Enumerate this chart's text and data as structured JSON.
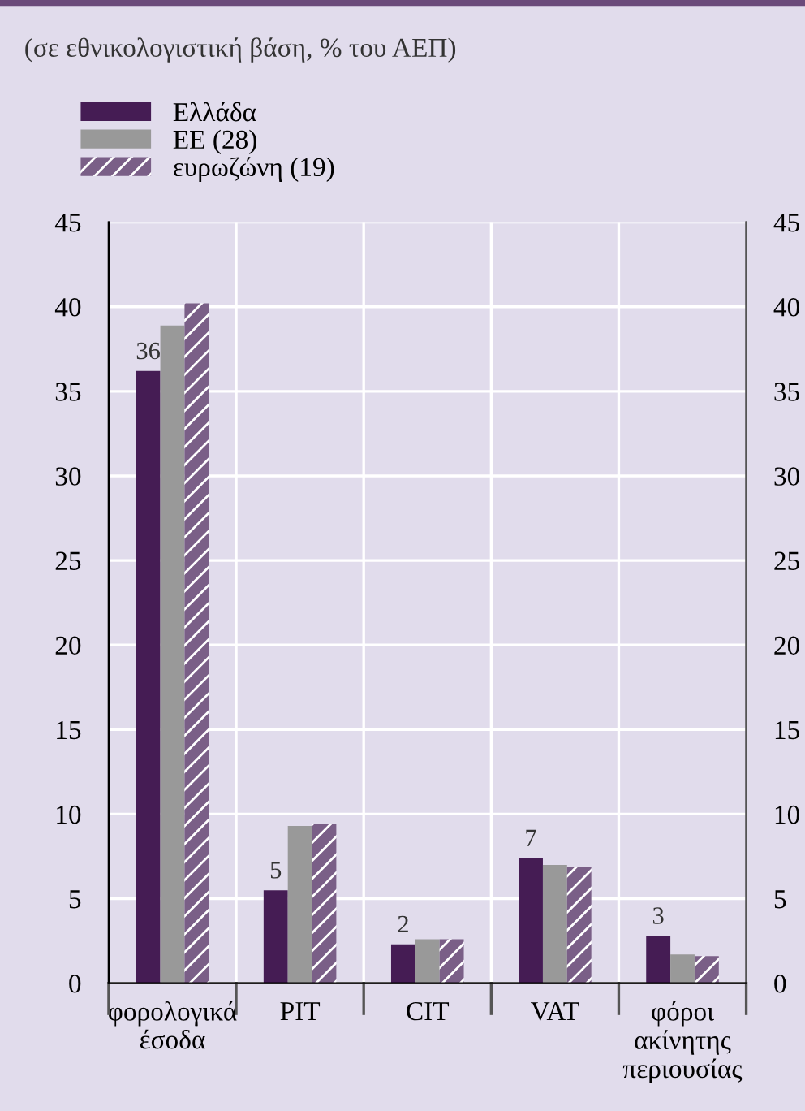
{
  "chart_data": {
    "type": "bar",
    "title": "(σε εθνικολογιστική βάση, % του ΑΕΠ)",
    "categories": [
      "φορολογικά\nέσοδα",
      "PIT",
      "CIT",
      "VAT",
      "φόροι\nακίνητης\nπεριουσίας"
    ],
    "series": [
      {
        "name": "Ελλάδα",
        "color": "#451c54",
        "values": [
          36.2,
          5.5,
          2.3,
          7.4,
          2.8
        ],
        "value_labels": [
          "36",
          "5",
          "2",
          "7",
          "3"
        ]
      },
      {
        "name": "ΕΕ (28)",
        "color": "#999999",
        "values": [
          38.9,
          9.3,
          2.6,
          7.0,
          1.7
        ]
      },
      {
        "name": "ευρωζώνη (19)",
        "color": "#7a5f87",
        "values": [
          40.2,
          9.4,
          2.6,
          6.9,
          1.6
        ]
      }
    ],
    "ylim": [
      0,
      45
    ],
    "yticks": [
      0,
      5,
      10,
      15,
      20,
      25,
      30,
      35,
      40,
      45
    ],
    "y2lim": [
      0,
      45
    ],
    "y2ticks": [
      0,
      5,
      10,
      15,
      20,
      25,
      30,
      35,
      40,
      45
    ],
    "grid": true,
    "legend": "top left"
  }
}
